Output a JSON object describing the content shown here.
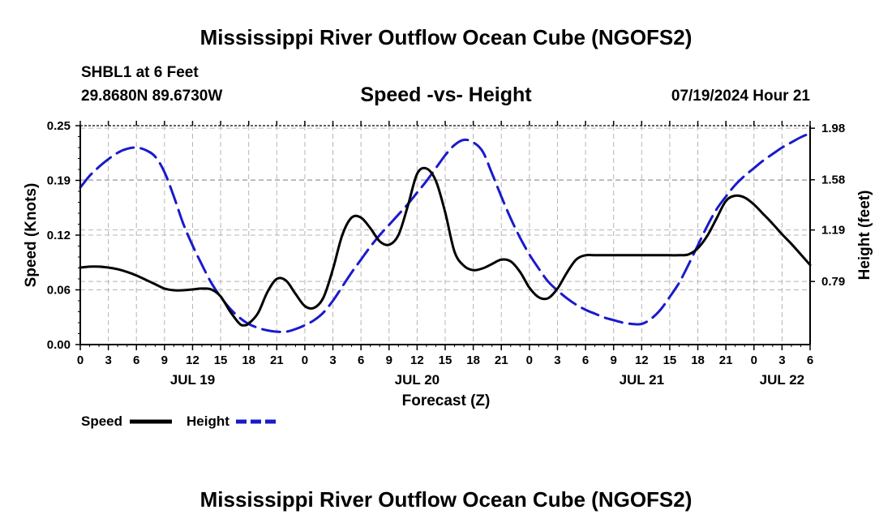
{
  "page": {
    "title": "Mississippi River Outflow Ocean Cube (NGOFS2)",
    "bottom_title": "Mississippi River Outflow Ocean Cube (NGOFS2)"
  },
  "header": {
    "station": "SHBL1 at 6 Feet",
    "coords": "29.8680N  89.6730W",
    "subtitle": "Speed -vs- Height",
    "timestamp": "07/19/2024 Hour 21"
  },
  "legend": {
    "speed_label": "Speed",
    "height_label": "Height"
  },
  "colors": {
    "speed": "#000000",
    "height": "#1a1acc",
    "grid": "#b4b4b4"
  },
  "chart_data": {
    "type": "line",
    "xlabel": "Forecast (Z)",
    "ylabel_left": "Speed (Knots)",
    "ylabel_right": "Height (feet)",
    "xlim_hours": [
      0,
      78
    ],
    "ylim_left": [
      0,
      0.25
    ],
    "ylim_right": [
      0.3,
      2.0
    ],
    "x_tick_hours": [
      0,
      3,
      6,
      9,
      12,
      15,
      18,
      21,
      24,
      27,
      30,
      33,
      36,
      39,
      42,
      45,
      48,
      51,
      54,
      57,
      60,
      63,
      66,
      69,
      72,
      75,
      78
    ],
    "x_tick_labels": [
      "0",
      "3",
      "6",
      "9",
      "12",
      "15",
      "18",
      "21",
      "0",
      "3",
      "6",
      "9",
      "12",
      "15",
      "18",
      "21",
      "0",
      "3",
      "6",
      "9",
      "12",
      "15",
      "18",
      "21",
      "0",
      "3",
      "6"
    ],
    "date_labels": [
      {
        "hour": 12,
        "label": "JUL 19"
      },
      {
        "hour": 36,
        "label": "JUL 20"
      },
      {
        "hour": 60,
        "label": "JUL 21"
      },
      {
        "hour": 75,
        "label": "JUL 22"
      }
    ],
    "left_ticks": [
      {
        "value": 0.0,
        "label": "0.00"
      },
      {
        "value": 0.0625,
        "label": "0.06"
      },
      {
        "value": 0.125,
        "label": "0.12"
      },
      {
        "value": 0.1875,
        "label": "0.19"
      },
      {
        "value": 0.25,
        "label": "0.25"
      }
    ],
    "right_ticks": [
      {
        "value": 0.79,
        "label": "0.79"
      },
      {
        "value": 1.19,
        "label": "1.19"
      },
      {
        "value": 1.58,
        "label": "1.58"
      },
      {
        "value": 1.98,
        "label": "1.98"
      }
    ],
    "series": [
      {
        "name": "Speed",
        "axis": "left",
        "style": "solid",
        "x": [
          0,
          1,
          2,
          3,
          4,
          5,
          6,
          7,
          8,
          9,
          10,
          11,
          12,
          13,
          14,
          15,
          16,
          17,
          17.5,
          18,
          19,
          20,
          21,
          22,
          23,
          24,
          25,
          26,
          27,
          28,
          29,
          30,
          31,
          32,
          33,
          34,
          35,
          36,
          37,
          38,
          39,
          40,
          41,
          42,
          43,
          44,
          45,
          46,
          47,
          48,
          49,
          50,
          51,
          52,
          53,
          54,
          55,
          56,
          57,
          58,
          59,
          60,
          61,
          62,
          63,
          64,
          65,
          66,
          67,
          68,
          69,
          70,
          71,
          72,
          73,
          74,
          75,
          76,
          77,
          78
        ],
        "values": [
          0.088,
          0.089,
          0.089,
          0.088,
          0.086,
          0.083,
          0.079,
          0.074,
          0.069,
          0.064,
          0.062,
          0.062,
          0.063,
          0.064,
          0.063,
          0.055,
          0.038,
          0.024,
          0.022,
          0.024,
          0.036,
          0.06,
          0.075,
          0.073,
          0.058,
          0.044,
          0.042,
          0.054,
          0.086,
          0.125,
          0.145,
          0.145,
          0.133,
          0.118,
          0.114,
          0.125,
          0.158,
          0.195,
          0.201,
          0.187,
          0.151,
          0.106,
          0.09,
          0.085,
          0.087,
          0.092,
          0.097,
          0.095,
          0.083,
          0.065,
          0.054,
          0.053,
          0.064,
          0.082,
          0.097,
          0.102,
          0.102,
          0.102,
          0.102,
          0.102,
          0.102,
          0.102,
          0.102,
          0.102,
          0.102,
          0.102,
          0.103,
          0.11,
          0.124,
          0.144,
          0.164,
          0.17,
          0.168,
          0.16,
          0.149,
          0.138,
          0.126,
          0.115,
          0.103,
          0.091
        ]
      },
      {
        "name": "Height",
        "axis": "right",
        "style": "dashed",
        "x": [
          0,
          1,
          2,
          3,
          4,
          5,
          6,
          7,
          8,
          9,
          10,
          11,
          12,
          13,
          14,
          15,
          16,
          17,
          18,
          19,
          20,
          21,
          22,
          23,
          24,
          25,
          26,
          27,
          28,
          29,
          30,
          31,
          32,
          33,
          34,
          35,
          36,
          37,
          38,
          39,
          40,
          41,
          42,
          43,
          44,
          45,
          46,
          47,
          48,
          49,
          50,
          51,
          52,
          53,
          54,
          55,
          56,
          57,
          58,
          59,
          60,
          61,
          62,
          63,
          64,
          65,
          66,
          67,
          68,
          69,
          70,
          71,
          72,
          73,
          74,
          75,
          76,
          77,
          78
        ],
        "values": [
          1.52,
          1.61,
          1.68,
          1.74,
          1.79,
          1.82,
          1.83,
          1.81,
          1.76,
          1.64,
          1.45,
          1.24,
          1.07,
          0.92,
          0.78,
          0.67,
          0.58,
          0.51,
          0.46,
          0.43,
          0.41,
          0.4,
          0.4,
          0.42,
          0.45,
          0.49,
          0.55,
          0.64,
          0.75,
          0.86,
          0.96,
          1.06,
          1.15,
          1.23,
          1.31,
          1.39,
          1.48,
          1.57,
          1.67,
          1.77,
          1.85,
          1.89,
          1.87,
          1.8,
          1.63,
          1.45,
          1.28,
          1.13,
          1.0,
          0.89,
          0.79,
          0.72,
          0.66,
          0.61,
          0.57,
          0.54,
          0.51,
          0.49,
          0.47,
          0.46,
          0.46,
          0.5,
          0.57,
          0.67,
          0.78,
          0.92,
          1.07,
          1.22,
          1.35,
          1.45,
          1.54,
          1.61,
          1.67,
          1.73,
          1.78,
          1.83,
          1.87,
          1.91,
          1.94
        ]
      }
    ]
  }
}
